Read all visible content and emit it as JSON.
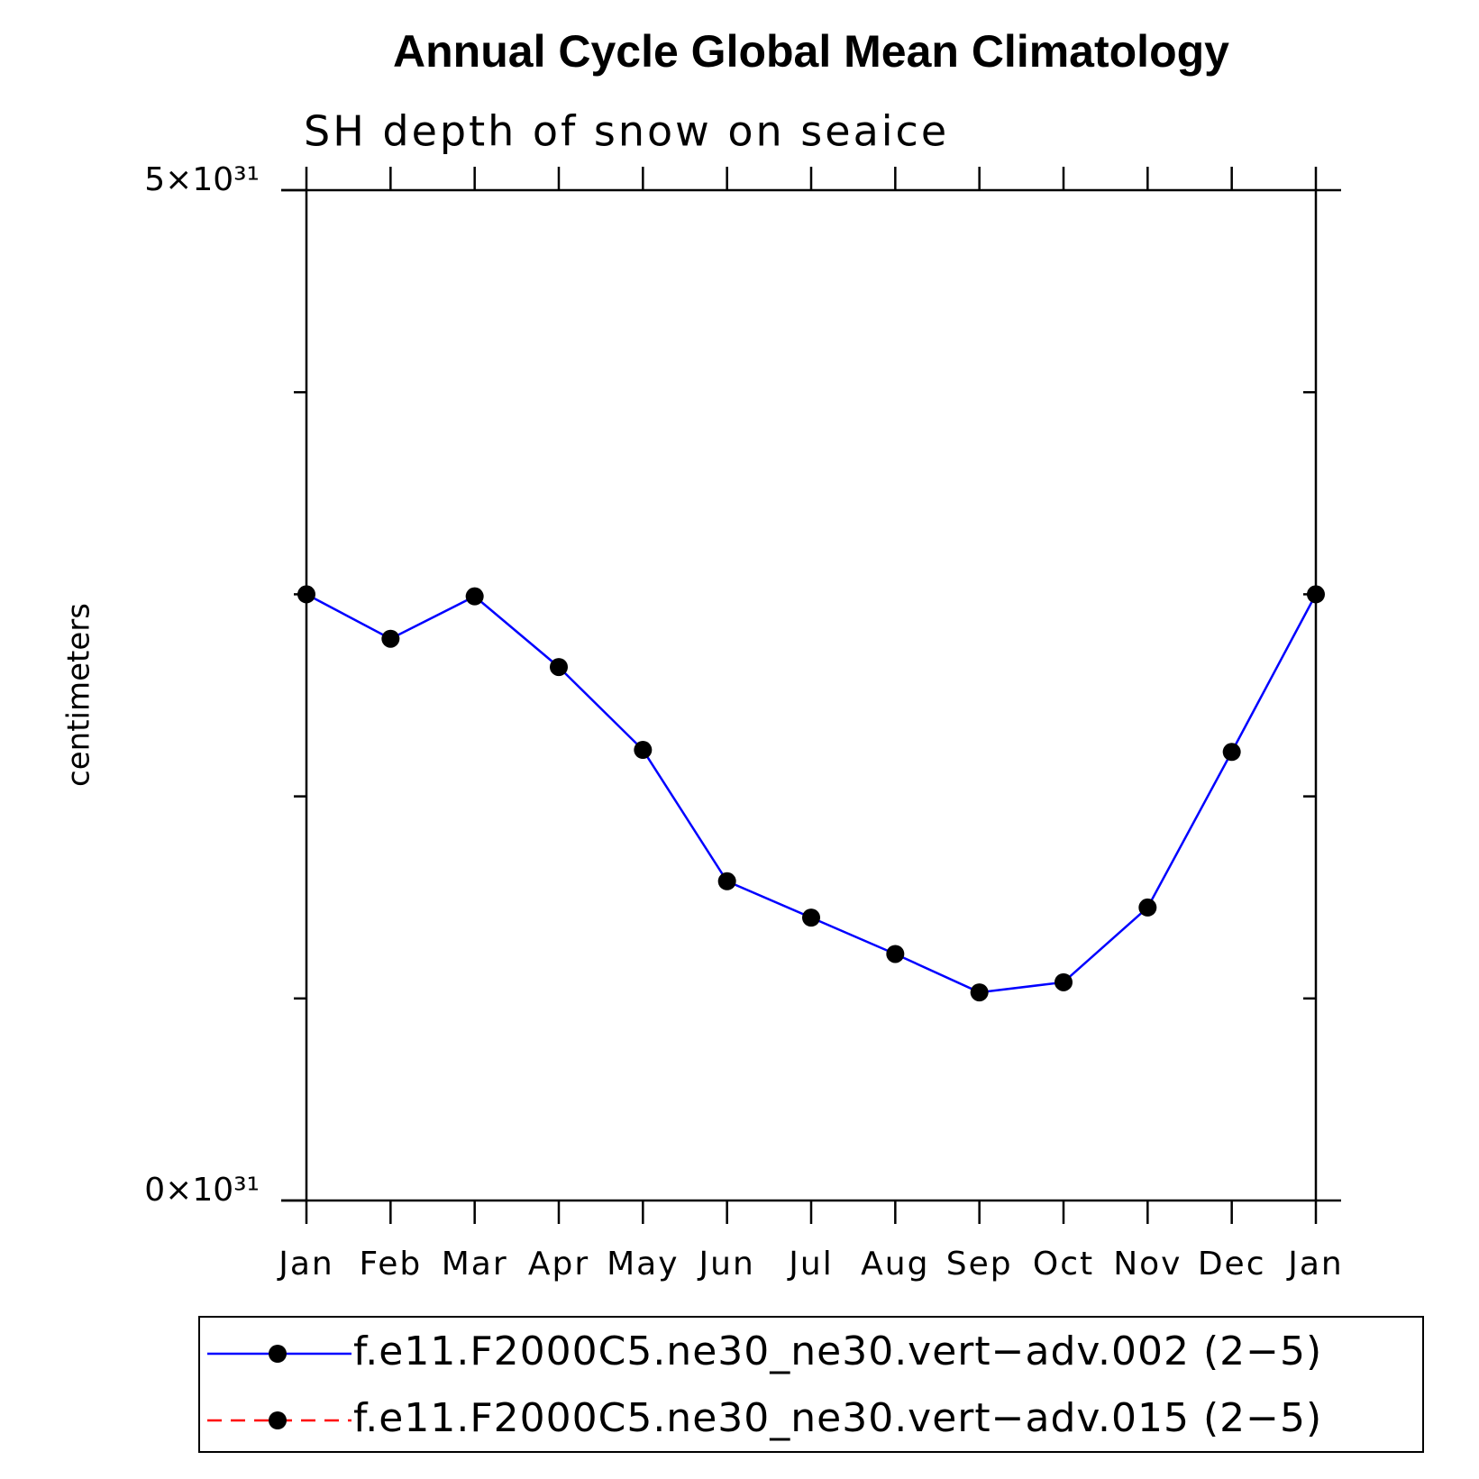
{
  "chart_data": {
    "type": "line",
    "title": "Annual Cycle Global Mean Climatology",
    "subtitle": "SH depth of snow on seaice",
    "y_label": "centimeters",
    "categories": [
      "Jan",
      "Feb",
      "Mar",
      "Apr",
      "May",
      "Jun",
      "Jul",
      "Aug",
      "Sep",
      "Oct",
      "Nov",
      "Dec",
      "Jan"
    ],
    "series": [
      {
        "name": "f.e11.F2000C5.ne30_ne30.vert−adv.002 (2−5)",
        "color": "#0000ff",
        "dash": "solid",
        "marker": "#000000",
        "values": [
          3e+31,
          2.78e+31,
          2.99e+31,
          2.64e+31,
          2.23e+31,
          1.58e+31,
          1.4e+31,
          1.22e+31,
          1.03e+31,
          1.08e+31,
          1.45e+31,
          2.22e+31,
          3e+31
        ]
      },
      {
        "name": "f.e11.F2000C5.ne30_ne30.vert−adv.015 (2−5)",
        "color": "#ff0000",
        "dash": "dashed",
        "marker": "#000000",
        "values": [
          null,
          null,
          null,
          null,
          null,
          null,
          null,
          null,
          null,
          null,
          null,
          null,
          null
        ]
      }
    ],
    "ylim": [
      0,
      5e+31
    ],
    "yticks": [
      {
        "value": 0,
        "label": "0×10³¹"
      },
      {
        "value": 5e+31,
        "label": "5×10³¹"
      }
    ],
    "yminorticks": [
      1e+31,
      2e+31,
      3e+31,
      4e+31
    ],
    "legend": "bottom"
  }
}
